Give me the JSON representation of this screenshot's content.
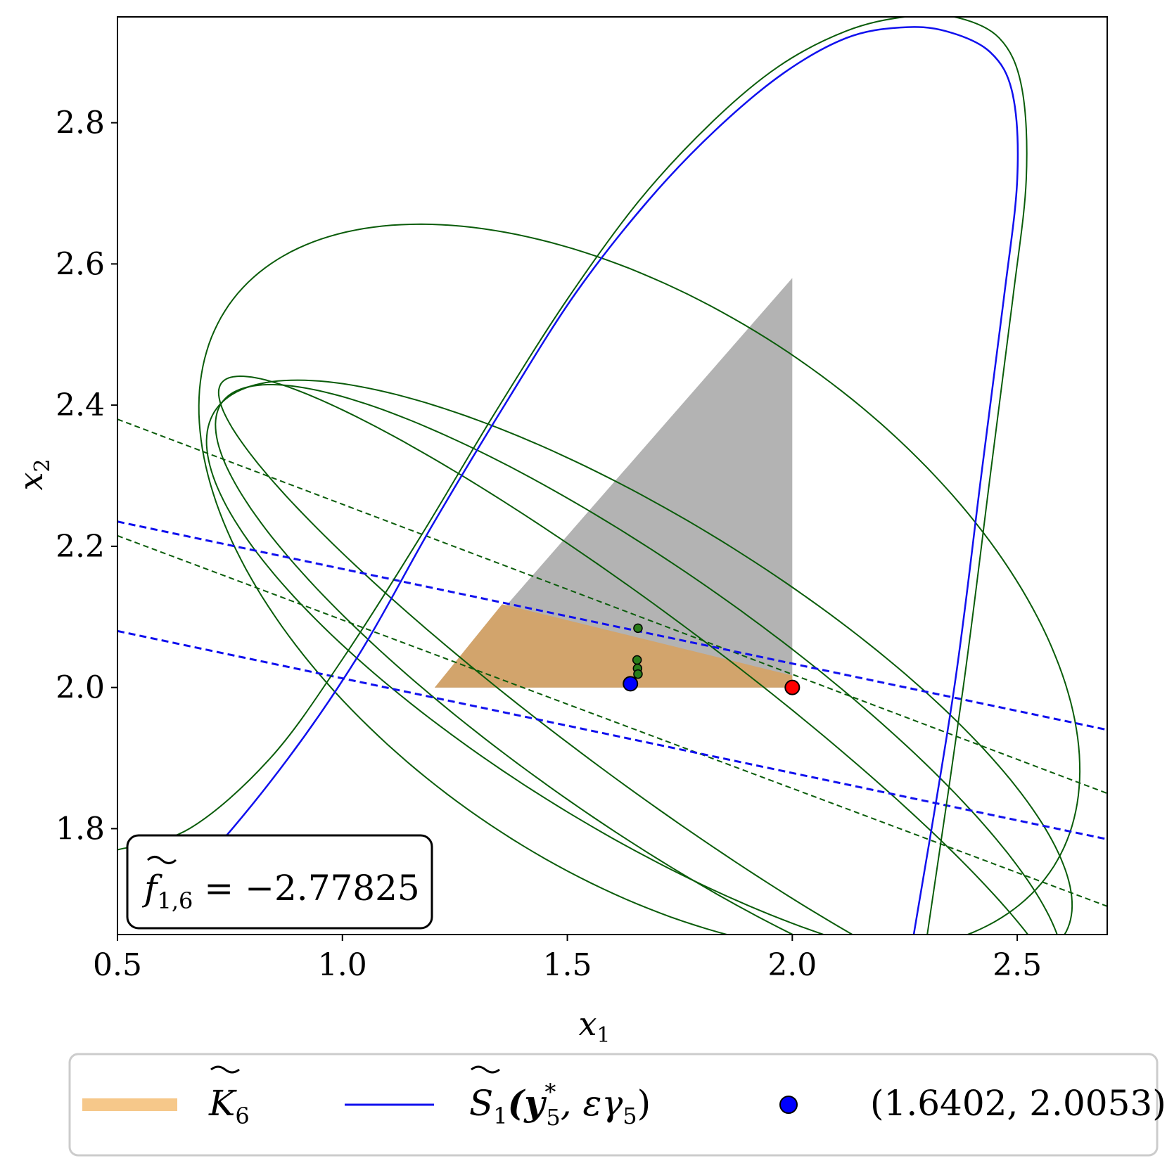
{
  "chart_data": {
    "type": "line",
    "xlabel": "x",
    "xlabel_sub": "1",
    "ylabel": "x",
    "ylabel_sub": "2",
    "xlim": [
      0.5,
      2.7
    ],
    "ylim": [
      1.65,
      2.95
    ],
    "xticks": [
      0.5,
      1.0,
      1.5,
      2.0,
      2.5
    ],
    "xtick_labels": [
      "0.5",
      "1.0",
      "1.5",
      "2.0",
      "2.5"
    ],
    "yticks": [
      1.8,
      2.0,
      2.2,
      2.4,
      2.6,
      2.8
    ],
    "ytick_labels": [
      "1.8",
      "2.0",
      "2.2",
      "2.4",
      "2.6",
      "2.8"
    ],
    "grid": false,
    "annotation": {
      "main": "f",
      "sub": "1,6",
      "rest": " = −2.77825",
      "value": -2.77825
    },
    "gray_region": [
      [
        1.205,
        2.0
      ],
      [
        2.0,
        2.0
      ],
      [
        2.0,
        2.58
      ]
    ],
    "orange_region": [
      [
        1.205,
        2.0
      ],
      [
        2.0,
        2.0
      ],
      [
        2.0,
        2.017
      ],
      [
        1.355,
        2.118
      ]
    ],
    "blue_curve_color": "#1010ee",
    "green_color": "#0a5c0a",
    "region_orange_color": "#d2a46c",
    "legend_orange_color": "#f6c88a",
    "gray_color": "#b3b3b3",
    "blue_curve": [
      [
        2.27,
        1.65
      ],
      [
        2.36,
        2.0
      ],
      [
        2.42,
        2.3
      ],
      [
        2.47,
        2.55
      ],
      [
        2.5,
        2.72
      ],
      [
        2.49,
        2.84
      ],
      [
        2.44,
        2.9
      ],
      [
        2.34,
        2.93
      ],
      [
        2.24,
        2.935
      ],
      [
        2.12,
        2.92
      ],
      [
        1.98,
        2.87
      ],
      [
        1.83,
        2.79
      ],
      [
        1.68,
        2.69
      ],
      [
        1.52,
        2.56
      ],
      [
        1.37,
        2.41
      ],
      [
        1.2,
        2.23
      ],
      [
        1.04,
        2.05
      ],
      [
        0.88,
        1.9
      ],
      [
        0.7,
        1.76
      ],
      [
        0.56,
        1.68
      ]
    ],
    "green_curve_outer": [
      [
        2.3,
        1.65
      ],
      [
        2.38,
        2.0
      ],
      [
        2.44,
        2.3
      ],
      [
        2.49,
        2.55
      ],
      [
        2.52,
        2.72
      ],
      [
        2.51,
        2.85
      ],
      [
        2.46,
        2.92
      ],
      [
        2.36,
        2.95
      ],
      [
        2.25,
        2.95
      ],
      [
        2.12,
        2.93
      ],
      [
        1.97,
        2.88
      ],
      [
        1.82,
        2.8
      ],
      [
        1.66,
        2.69
      ],
      [
        1.5,
        2.55
      ],
      [
        1.34,
        2.39
      ],
      [
        1.17,
        2.21
      ],
      [
        1.0,
        2.04
      ],
      [
        0.84,
        1.9
      ],
      [
        0.66,
        1.8
      ],
      [
        0.5,
        1.77
      ]
    ],
    "green_ellipses": [
      {
        "center": [
          1.66,
          2.14
        ],
        "a": 1.02,
        "b": 0.43,
        "angle_deg": -18
      },
      {
        "center": [
          1.66,
          2.02
        ],
        "a": 1.02,
        "b": 0.24,
        "angle_deg": -20
      },
      {
        "center": [
          1.66,
          1.99
        ],
        "a": 1.02,
        "b": 0.2,
        "angle_deg": -23
      },
      {
        "center": [
          1.66,
          1.99
        ],
        "a": 1.03,
        "b": 0.13,
        "angle_deg": -25
      }
    ],
    "green_dashed_lines": [
      [
        [
          0.5,
          2.38
        ],
        [
          2.7,
          1.85
        ]
      ],
      [
        [
          0.5,
          2.215
        ],
        [
          2.7,
          1.69
        ]
      ]
    ],
    "blue_dashed_lines": [
      [
        [
          0.5,
          2.235
        ],
        [
          2.7,
          1.94
        ]
      ],
      [
        [
          0.5,
          2.08
        ],
        [
          2.7,
          1.785
        ]
      ]
    ],
    "green_points": [
      [
        1.657,
        2.084
      ],
      [
        1.655,
        2.039
      ],
      [
        1.656,
        2.027
      ],
      [
        1.657,
        2.019
      ]
    ],
    "blue_point": [
      1.6402,
      2.0053
    ],
    "red_point": [
      2.0,
      2.0
    ],
    "legend": {
      "items": [
        {
          "main": "K",
          "sub": "6",
          "style": "thick-line"
        },
        {
          "main": "S",
          "sub": "1",
          "rest": "(y",
          "sup": "*",
          "sub2": "5",
          "rest2": ", εγ",
          "sub3": "5",
          "close": ")",
          "style": "line"
        },
        {
          "label": "(1.6402, 2.0053)",
          "style": "marker"
        }
      ]
    }
  }
}
